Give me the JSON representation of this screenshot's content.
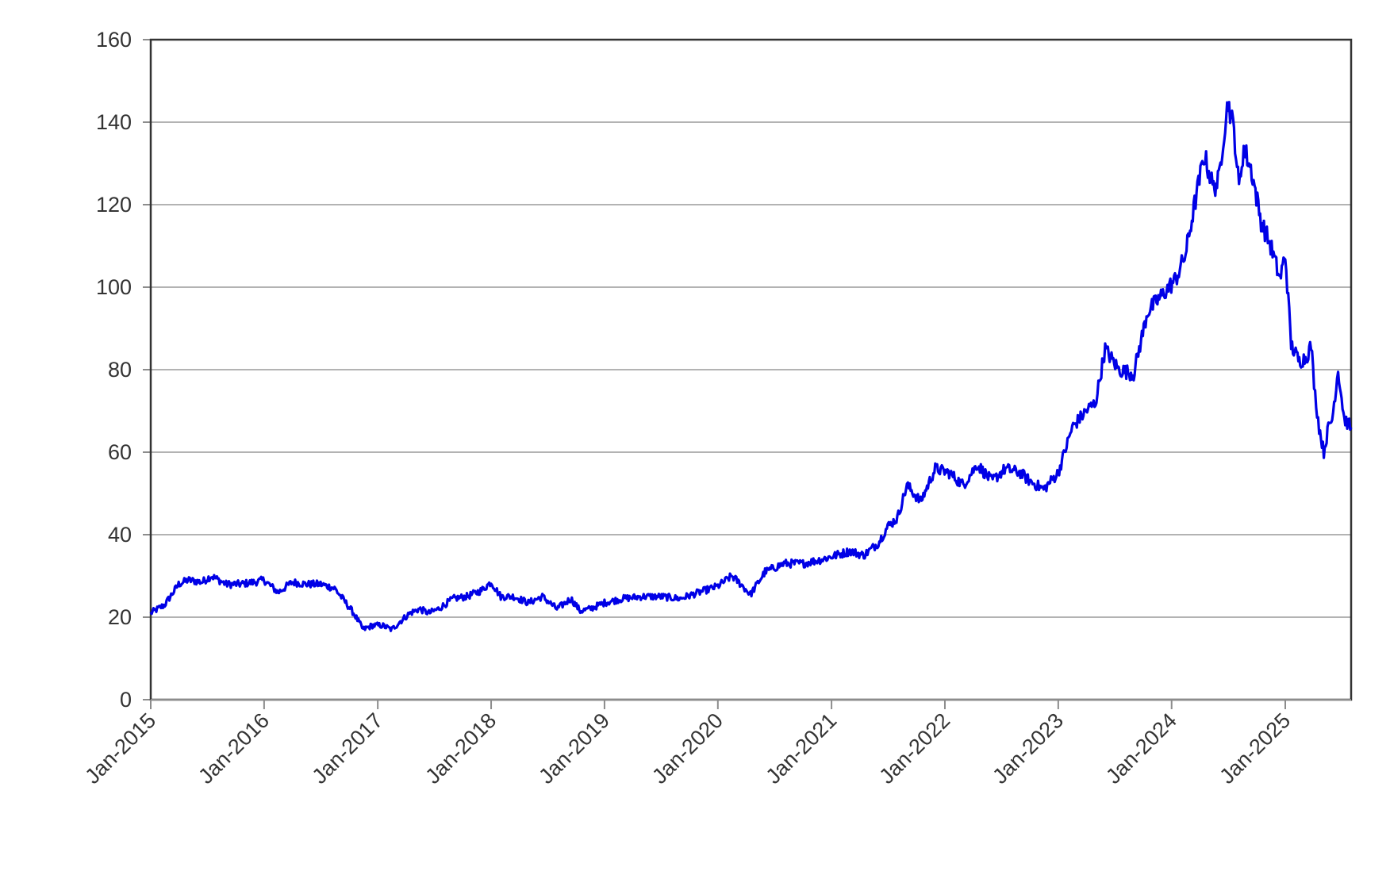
{
  "chart_data": {
    "type": "line",
    "title": "",
    "xlabel": "",
    "ylabel": "",
    "ylim": [
      0,
      160
    ],
    "xlim": [
      "2015-01-01",
      "2025-08-01"
    ],
    "grid": "horizontal",
    "line_color": "#0000e6",
    "y_ticks": [
      0,
      20,
      40,
      60,
      80,
      100,
      120,
      140,
      160
    ],
    "y_tick_labels": [
      "0",
      "20",
      "40",
      "60",
      "80",
      "100",
      "120",
      "140",
      "160"
    ],
    "x_ticks": [
      "2015-01-01",
      "2016-01-01",
      "2017-01-01",
      "2018-01-01",
      "2019-01-01",
      "2020-01-01",
      "2021-01-01",
      "2022-01-01",
      "2023-01-01",
      "2024-01-01",
      "2025-01-01"
    ],
    "x_tick_labels": [
      "Jan-2015",
      "Jan-2016",
      "Jan-2017",
      "Jan-2018",
      "Jan-2019",
      "Jan-2020",
      "Jan-2021",
      "Jan-2022",
      "Jan-2023",
      "Jan-2024",
      "Jan-2025"
    ],
    "series": [
      {
        "x": [
          "2015-01-01",
          "2015-02-15",
          "2015-04-01",
          "2015-05-01",
          "2015-06-15",
          "2015-07-15",
          "2015-09-01",
          "2015-10-15",
          "2015-12-01",
          "2016-01-01",
          "2016-02-15",
          "2016-04-01",
          "2016-05-15",
          "2016-07-01",
          "2016-08-15",
          "2016-09-15",
          "2016-10-15",
          "2016-11-15",
          "2016-12-15",
          "2017-01-15",
          "2017-02-15",
          "2017-03-15",
          "2017-04-15",
          "2017-05-15",
          "2017-06-15",
          "2017-07-15",
          "2017-09-01",
          "2017-10-15",
          "2017-12-01",
          "2018-01-01",
          "2018-02-01",
          "2018-03-15",
          "2018-05-01",
          "2018-06-15",
          "2018-08-01",
          "2018-09-15",
          "2018-10-15",
          "2018-11-15",
          "2019-01-01",
          "2019-03-01",
          "2019-05-01",
          "2019-07-01",
          "2019-09-01",
          "2019-11-01",
          "2020-01-01",
          "2020-02-15",
          "2020-03-15",
          "2020-04-15",
          "2020-06-01",
          "2020-08-01",
          "2020-10-01",
          "2020-12-01",
          "2021-01-15",
          "2021-03-01",
          "2021-04-15",
          "2021-06-01",
          "2021-07-01",
          "2021-08-01",
          "2021-09-01",
          "2021-10-15",
          "2021-12-01",
          "2022-01-15",
          "2022-03-01",
          "2022-04-15",
          "2022-06-01",
          "2022-07-15",
          "2022-09-01",
          "2022-10-01",
          "2022-11-15",
          "2023-01-01",
          "2023-02-15",
          "2023-04-01",
          "2023-05-01",
          "2023-06-01",
          "2023-07-15",
          "2023-09-01",
          "2023-10-15",
          "2023-12-01",
          "2024-01-15",
          "2024-02-15",
          "2024-03-15",
          "2024-04-15",
          "2024-05-15",
          "2024-06-01",
          "2024-06-15",
          "2024-07-01",
          "2024-07-20",
          "2024-08-05",
          "2024-08-20",
          "2024-09-15",
          "2024-10-15",
          "2024-11-15",
          "2024-12-15",
          "2025-01-01",
          "2025-01-20",
          "2025-02-15",
          "2025-03-10",
          "2025-03-25",
          "2025-04-07",
          "2025-04-20",
          "2025-05-05",
          "2025-05-20",
          "2025-06-01",
          "2025-06-20",
          "2025-07-10",
          "2025-08-01"
        ],
        "y": [
          21,
          23,
          28,
          29,
          28.5,
          30,
          28,
          28,
          28.5,
          29,
          26,
          28.5,
          28,
          28,
          27,
          24,
          21,
          17,
          18,
          18,
          17,
          19,
          21,
          22,
          21,
          22,
          24.5,
          25,
          26.5,
          28.5,
          25,
          25,
          23.5,
          25,
          22,
          24.5,
          21.5,
          22,
          23.5,
          24.5,
          25,
          25,
          24.5,
          26,
          27.5,
          30,
          28,
          25.5,
          31,
          33,
          33,
          34,
          35,
          36,
          35,
          38,
          42,
          44,
          52,
          48,
          56,
          55,
          52,
          57,
          53,
          56,
          55,
          53,
          51,
          55,
          66,
          70,
          72,
          85,
          80,
          79,
          94,
          98,
          102,
          108,
          120,
          132,
          124,
          126,
          136,
          145,
          138,
          124,
          134,
          128,
          116,
          110,
          102,
          108,
          86,
          82,
          83,
          86,
          74,
          66,
          60,
          66,
          68,
          80,
          68,
          66
        ]
      }
    ]
  }
}
